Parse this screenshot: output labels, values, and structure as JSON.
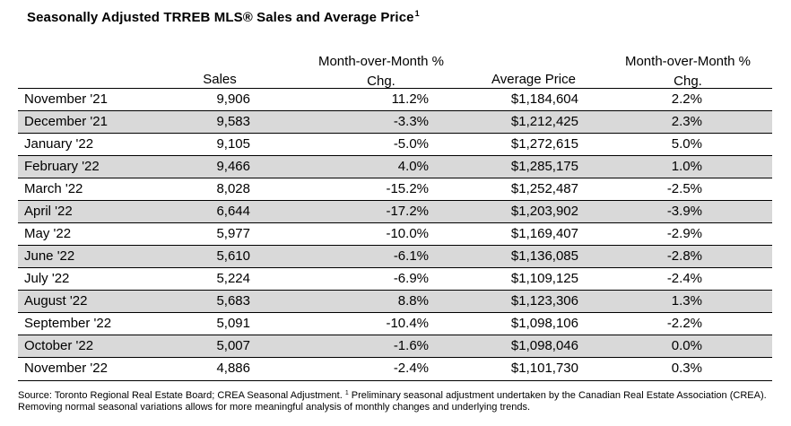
{
  "title": "Seasonally Adjusted TRREB MLS® Sales and Average Price",
  "title_footnote_marker": "1",
  "headers": {
    "sales": "Sales",
    "mom_sales": "Month-over-Month % Chg.",
    "avg_price": "Average Price",
    "mom_price": "Month-over-Month % Chg."
  },
  "rows": [
    {
      "month": "November '21",
      "sales": "9,906",
      "mom_sales": "11.2%",
      "avg_price": "$1,184,604",
      "mom_price": "2.2%"
    },
    {
      "month": "December '21",
      "sales": "9,583",
      "mom_sales": "-3.3%",
      "avg_price": "$1,212,425",
      "mom_price": "2.3%"
    },
    {
      "month": "January '22",
      "sales": "9,105",
      "mom_sales": "-5.0%",
      "avg_price": "$1,272,615",
      "mom_price": "5.0%"
    },
    {
      "month": "February '22",
      "sales": "9,466",
      "mom_sales": "4.0%",
      "avg_price": "$1,285,175",
      "mom_price": "1.0%"
    },
    {
      "month": "March '22",
      "sales": "8,028",
      "mom_sales": "-15.2%",
      "avg_price": "$1,252,487",
      "mom_price": "-2.5%"
    },
    {
      "month": "April '22",
      "sales": "6,644",
      "mom_sales": "-17.2%",
      "avg_price": "$1,203,902",
      "mom_price": "-3.9%"
    },
    {
      "month": "May '22",
      "sales": "5,977",
      "mom_sales": "-10.0%",
      "avg_price": "$1,169,407",
      "mom_price": "-2.9%"
    },
    {
      "month": "June '22",
      "sales": "5,610",
      "mom_sales": "-6.1%",
      "avg_price": "$1,136,085",
      "mom_price": "-2.8%"
    },
    {
      "month": "July '22",
      "sales": "5,224",
      "mom_sales": "-6.9%",
      "avg_price": "$1,109,125",
      "mom_price": "-2.4%"
    },
    {
      "month": "August '22",
      "sales": "5,683",
      "mom_sales": "8.8%",
      "avg_price": "$1,123,306",
      "mom_price": "1.3%"
    },
    {
      "month": "September '22",
      "sales": "5,091",
      "mom_sales": "-10.4%",
      "avg_price": "$1,098,106",
      "mom_price": "-2.2%"
    },
    {
      "month": "October '22",
      "sales": "5,007",
      "mom_sales": "-1.6%",
      "avg_price": "$1,098,046",
      "mom_price": "0.0%"
    },
    {
      "month": "November '22",
      "sales": "4,886",
      "mom_sales": "-2.4%",
      "avg_price": "$1,101,730",
      "mom_price": "0.3%"
    }
  ],
  "source": {
    "part1": "Source: Toronto Regional Real Estate Board; CREA Seasonal Adjustment. ",
    "marker": "1",
    "part2": " Preliminary seasonal adjustment undertaken by the Canadian Real Estate Association (CREA).  Removing normal seasonal variations allows for more meaningful analysis of monthly changes and underlying trends."
  },
  "colors": {
    "shaded_row": "#d9d9d9",
    "text": "#000000"
  }
}
